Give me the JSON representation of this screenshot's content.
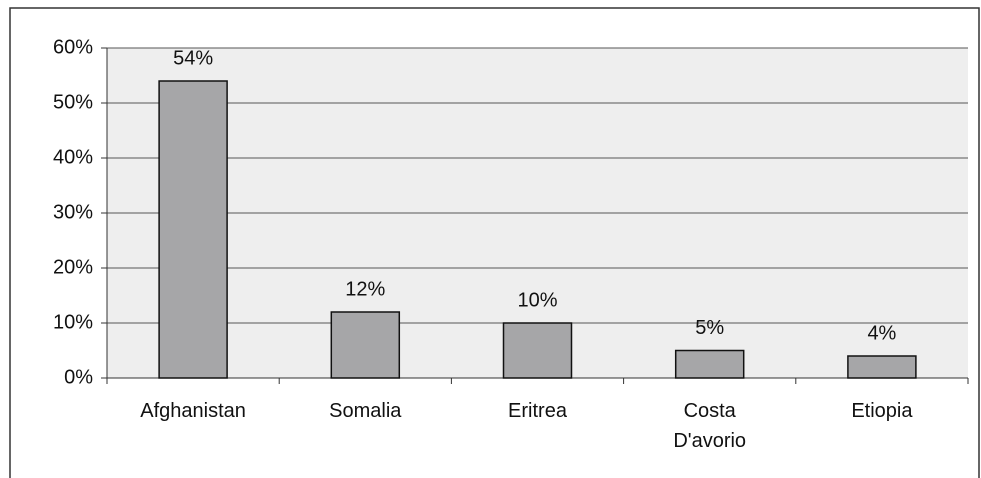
{
  "chart_data": {
    "type": "bar",
    "categories": [
      "Afghanistan",
      "Somalia",
      "Eritrea",
      "Costa D'avorio",
      "Etiopia"
    ],
    "values": [
      54,
      12,
      10,
      5,
      4
    ],
    "value_labels": [
      "54%",
      "12%",
      "10%",
      "5%",
      "4%"
    ],
    "color": "#a6a6a8",
    "ylim": [
      0,
      60
    ],
    "yticks": [
      {
        "value": 0,
        "label": "0%"
      },
      {
        "value": 10,
        "label": "10%"
      },
      {
        "value": 20,
        "label": "20%"
      },
      {
        "value": 30,
        "label": "30%"
      },
      {
        "value": 40,
        "label": "40%"
      },
      {
        "value": 50,
        "label": "50%"
      },
      {
        "value": 60,
        "label": "60%"
      }
    ],
    "grid": true
  }
}
